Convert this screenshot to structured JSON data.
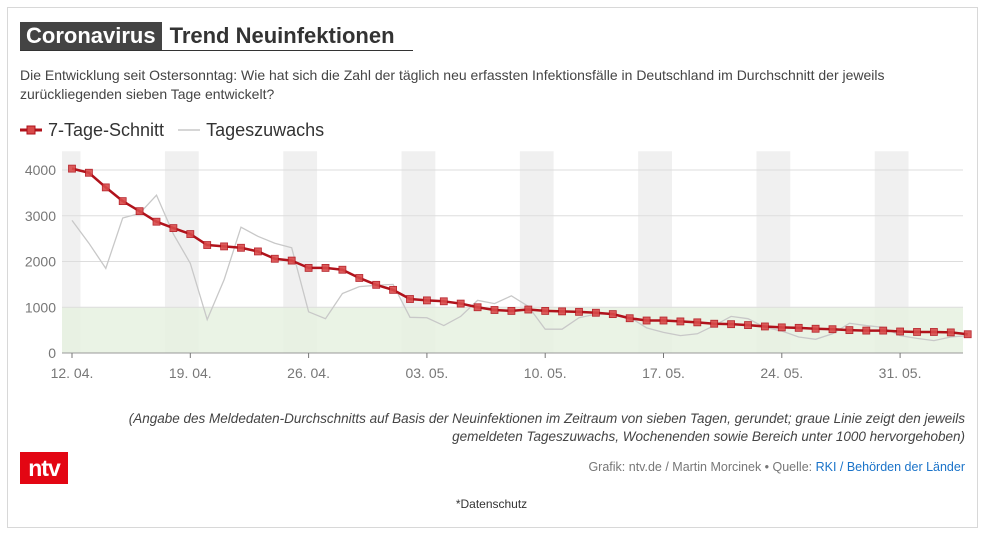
{
  "header": {
    "tag": "Coronavirus",
    "title": "Trend Neuinfektionen"
  },
  "subtitle": "Die Entwicklung seit Ostersonntag: Wie hat sich die Zahl der täglich neu erfassten Infektionsfälle in Deutschland im Durchschnitt der jeweils zurückliegenden sieben Tage entwickelt?",
  "legend": {
    "avg_label": "7-Tage-Schnitt",
    "daily_label": "Tageszuwachs"
  },
  "footnote_line1": "(Angabe des Meldedaten-Durchschnitts auf Basis der Neuinfektionen im Zeitraum von sieben Tagen, gerundet; graue Linie zeigt den jeweils",
  "footnote_line2": "gemeldeten Tageszuwachs, Wochenenden sowie Bereich unter 1000 hervorgehoben)",
  "logo_text": "ntv",
  "credit": {
    "prefix": "Grafik: ntv.de / Martin Morcinek • Quelle: ",
    "source": "RKI / Behörden der Länder"
  },
  "privacy": "*Datenschutz",
  "colors": {
    "avg_line": "#b0121b",
    "avg_marker": "#d94a4a",
    "daily_line": "#c8c8c8",
    "weekend_band": "#f0f0f0",
    "below_1000_band": "#e6f1e1",
    "grid": "#dddddd"
  },
  "chart_data": {
    "type": "line",
    "x_start": "12. 04.",
    "x_tick_labels": [
      "12. 04.",
      "19. 04.",
      "26. 04.",
      "03. 05.",
      "10. 05.",
      "17. 05.",
      "24. 05.",
      "31. 05."
    ],
    "y_ticks": [
      0,
      1000,
      2000,
      3000,
      4000
    ],
    "ylim": [
      0,
      4300
    ],
    "highlight_below": 1000,
    "weekends_highlighted": true,
    "grid": true,
    "legend_position": "top-left",
    "series": [
      {
        "name": "7-Tage-Schnitt",
        "values": [
          4030,
          3940,
          3620,
          3320,
          3100,
          2870,
          2730,
          2600,
          2360,
          2330,
          2300,
          2220,
          2060,
          2020,
          1860,
          1860,
          1820,
          1640,
          1490,
          1380,
          1180,
          1150,
          1130,
          1080,
          1000,
          940,
          920,
          950,
          920,
          910,
          900,
          880,
          850,
          760,
          710,
          710,
          690,
          670,
          640,
          630,
          610,
          580,
          560,
          550,
          530,
          520,
          500,
          490,
          490,
          470,
          460,
          460,
          450,
          410
        ]
      },
      {
        "name": "Tageszuwachs",
        "values": [
          2900,
          2400,
          1850,
          2950,
          3050,
          3450,
          2600,
          1960,
          730,
          1600,
          2750,
          2550,
          2400,
          2300,
          900,
          750,
          1300,
          1450,
          1480,
          1500,
          780,
          770,
          600,
          800,
          1150,
          1080,
          1250,
          1020,
          520,
          520,
          770,
          850,
          850,
          780,
          550,
          450,
          380,
          420,
          600,
          800,
          750,
          560,
          480,
          350,
          300,
          420,
          650,
          600,
          560,
          380,
          320,
          270,
          350,
          380
        ]
      }
    ]
  }
}
